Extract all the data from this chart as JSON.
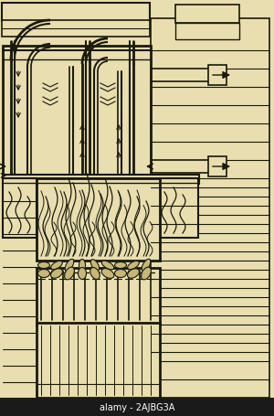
{
  "bg_color": "#e8deb0",
  "line_color": "#1a1a0a",
  "fig_width": 3.0,
  "fig_height": 4.56,
  "dpi": 100
}
